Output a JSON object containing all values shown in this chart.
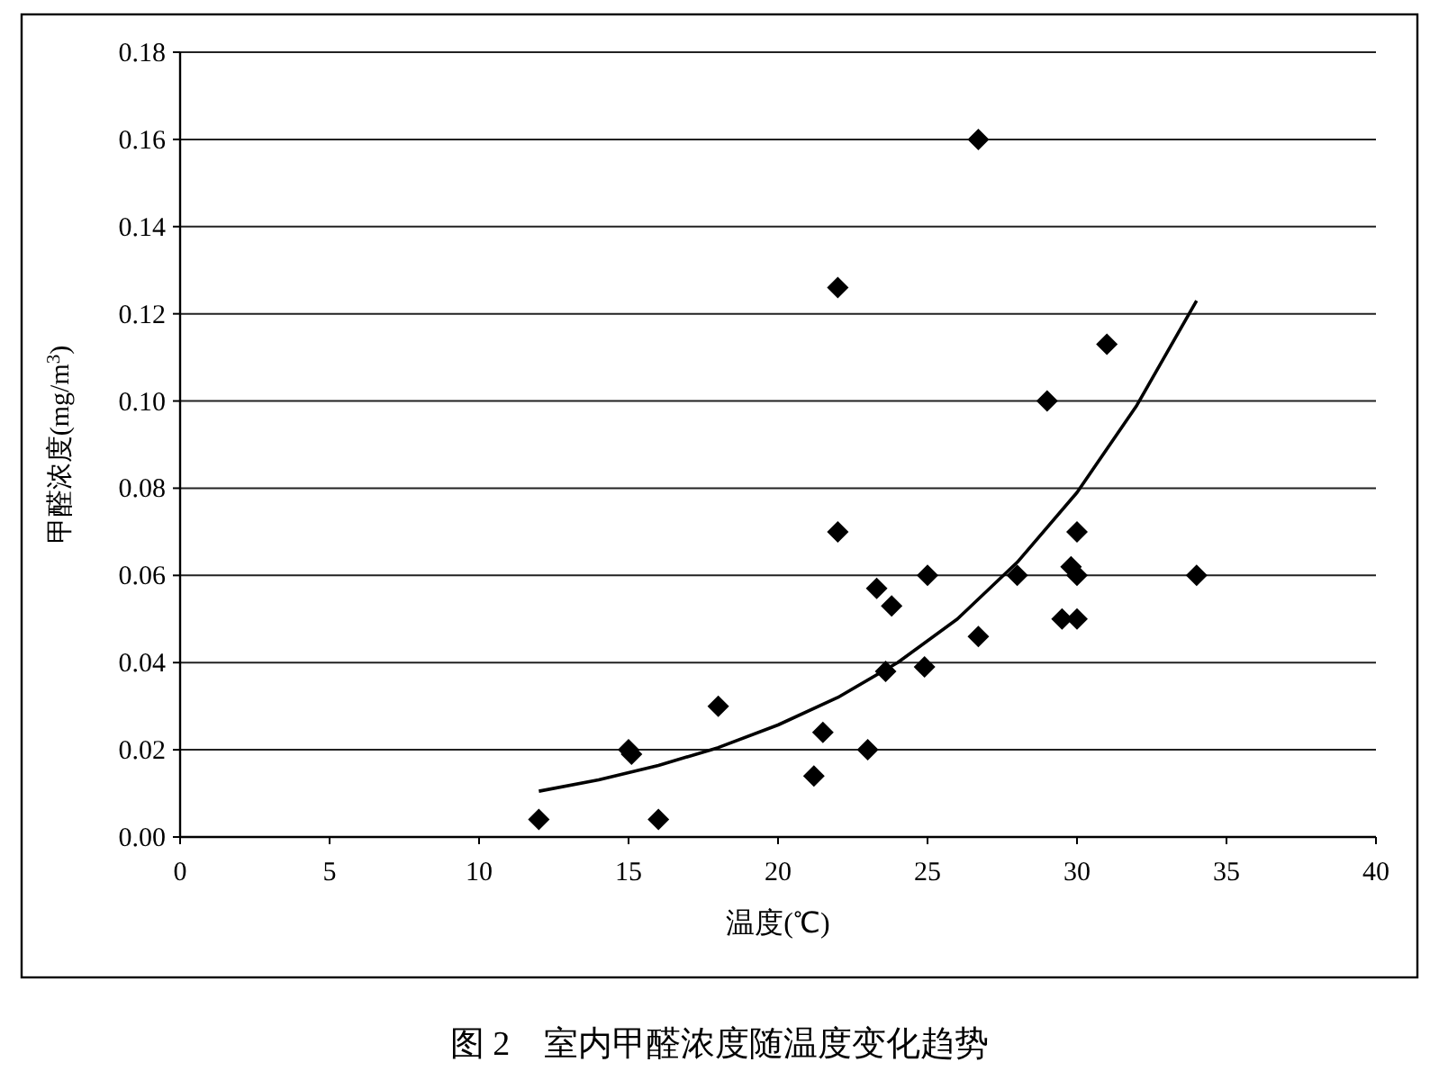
{
  "chart_data": {
    "type": "scatter",
    "title": "图 2　室内甲醛浓度随温度变化趋势",
    "xlabel": "温度(℃)",
    "ylabel": "甲醛浓度(mg/m$^{3}$)",
    "xlim": [
      0,
      40
    ],
    "xticks": [
      0,
      5,
      10,
      15,
      20,
      25,
      30,
      35,
      40
    ],
    "ylim": [
      0,
      0.18
    ],
    "yticks": [
      {
        "value": 0,
        "label": "0.00"
      },
      {
        "value": 0.02,
        "label": "0.02"
      },
      {
        "value": 0.04,
        "label": "0.04"
      },
      {
        "value": 0.06,
        "label": "0.06"
      },
      {
        "value": 0.08,
        "label": "0.08"
      },
      {
        "value": 0.1,
        "label": "0.10"
      },
      {
        "value": 0.12,
        "label": "0.12"
      },
      {
        "value": 0.14,
        "label": "0.14"
      },
      {
        "value": 0.16,
        "label": "0.16"
      },
      {
        "value": 0.18,
        "label": "0.18"
      }
    ],
    "grid": "y",
    "marker": "diamond",
    "series": [
      {
        "color": "#000000",
        "x": [
          12,
          15,
          15.1,
          16,
          18,
          21.2,
          21.5,
          22,
          22,
          23,
          23.3,
          23.8,
          23.6,
          25,
          24.9,
          26.7,
          26.7,
          28,
          29,
          31,
          29.8,
          30,
          30,
          29.5,
          30,
          34
        ],
        "values": [
          0.004,
          0.02,
          0.019,
          0.004,
          0.03,
          0.014,
          0.024,
          0.126,
          0.07,
          0.02,
          0.057,
          0.053,
          0.038,
          0.06,
          0.039,
          0.16,
          0.046,
          0.06,
          0.1,
          0.113,
          0.062,
          0.06,
          0.07,
          0.05,
          0.05,
          0.06
        ]
      },
      {
        "type": "line",
        "color": "#000000",
        "marker": "none",
        "x": [
          12,
          14,
          16,
          18,
          20,
          22,
          24,
          26,
          28,
          30,
          32,
          34
        ],
        "values": [
          0.0105,
          0.0131,
          0.0164,
          0.0205,
          0.0257,
          0.032,
          0.04,
          0.05,
          0.063,
          0.079,
          0.099,
          0.123
        ]
      }
    ]
  }
}
